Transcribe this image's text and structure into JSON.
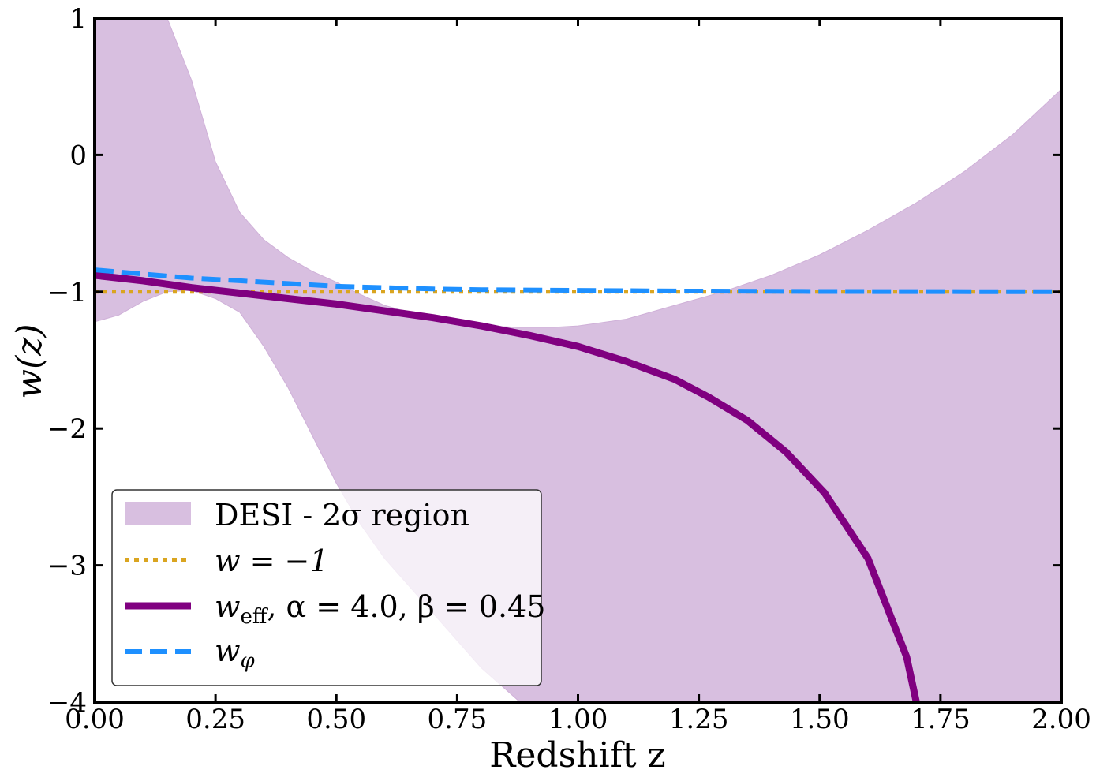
{
  "chart_data": {
    "type": "line",
    "xlabel": "Redshift z",
    "ylabel": "w(z)",
    "xlim": [
      0.0,
      2.0
    ],
    "ylim": [
      -4,
      1
    ],
    "xticks": [
      "0.00",
      "0.25",
      "0.50",
      "0.75",
      "1.00",
      "1.25",
      "1.50",
      "1.75",
      "2.00"
    ],
    "yticks": [
      "1",
      "0",
      "−1",
      "−2",
      "−3",
      "−4"
    ],
    "grid": false,
    "legend_position": "lower-left",
    "band": {
      "name": "DESI - 2σ region",
      "color": "#d8bfe0",
      "x": [
        0.0,
        0.05,
        0.1,
        0.15,
        0.2,
        0.25,
        0.3,
        0.35,
        0.4,
        0.45,
        0.5,
        0.55,
        0.6,
        0.7,
        0.8,
        0.88,
        0.95,
        1.0,
        1.1,
        1.2,
        1.3,
        1.4,
        1.5,
        1.6,
        1.7,
        1.8,
        1.9,
        2.0
      ],
      "upper": [
        1.0,
        1.0,
        1.0,
        1.0,
        0.55,
        -0.05,
        -0.42,
        -0.62,
        -0.75,
        -0.85,
        -0.93,
        -1.02,
        -1.1,
        -1.2,
        -1.25,
        -1.26,
        -1.26,
        -1.25,
        -1.2,
        -1.1,
        -1.0,
        -0.88,
        -0.73,
        -0.55,
        -0.35,
        -0.12,
        0.15,
        0.48
      ],
      "lower": [
        -1.22,
        -1.17,
        -1.07,
        -1.0,
        -0.99,
        -1.05,
        -1.15,
        -1.4,
        -1.7,
        -2.05,
        -2.4,
        -2.7,
        -2.95,
        -3.35,
        -3.75,
        -4.0,
        -4.0,
        -4.0,
        -4.0,
        -4.0,
        -4.0,
        -4.0,
        -4.0,
        -4.0,
        -4.0,
        -4.0,
        -4.0,
        -4.0
      ]
    },
    "series": [
      {
        "name": "w = −1",
        "style": "dotted",
        "color": "#daa520",
        "x": [
          0.0,
          2.0
        ],
        "y": [
          -1.0,
          -1.0
        ]
      },
      {
        "name": "w_eff, α = 4.0, β = 0.45",
        "style": "solid",
        "color": "#800080",
        "x": [
          0.0,
          0.1,
          0.2,
          0.3,
          0.4,
          0.5,
          0.6,
          0.7,
          0.8,
          0.9,
          1.0,
          1.1,
          1.2,
          1.27,
          1.35,
          1.43,
          1.51,
          1.6,
          1.68,
          1.7
        ],
        "y": [
          -0.88,
          -0.92,
          -0.97,
          -1.01,
          -1.05,
          -1.09,
          -1.14,
          -1.19,
          -1.25,
          -1.32,
          -1.4,
          -1.51,
          -1.64,
          -1.77,
          -1.94,
          -2.17,
          -2.47,
          -2.95,
          -3.67,
          -4.0
        ]
      },
      {
        "name": "w_φ",
        "style": "dashed",
        "color": "#1e90ff",
        "x": [
          0.0,
          0.1,
          0.2,
          0.3,
          0.4,
          0.5,
          0.6,
          0.7,
          0.8,
          1.0,
          1.2,
          1.5,
          2.0
        ],
        "y": [
          -0.84,
          -0.87,
          -0.9,
          -0.92,
          -0.94,
          -0.96,
          -0.97,
          -0.98,
          -0.985,
          -0.99,
          -0.995,
          -0.998,
          -1.0
        ]
      }
    ]
  },
  "legend": {
    "band_label": "DESI - 2σ region",
    "w_eq_label": "w = −1",
    "weff_label": "w",
    "weff_sub": "eff",
    "weff_params": ",  α = 4.0,  β = 0.45",
    "wphi_label": "w",
    "wphi_sub": "φ"
  }
}
